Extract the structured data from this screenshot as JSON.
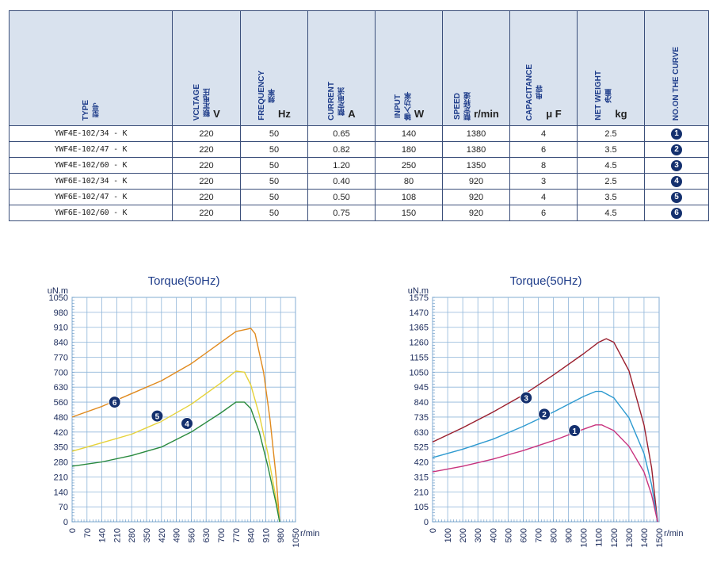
{
  "table": {
    "headers": [
      {
        "en": "TYPE",
        "cn": "型号",
        "unit": ""
      },
      {
        "en": "VCLTAGE",
        "cn": "额定电压",
        "unit": "V"
      },
      {
        "en": "FREQUENCY",
        "cn": "频率",
        "unit": "Hz"
      },
      {
        "en": "CURRENT",
        "cn": "额定电流",
        "unit": "A"
      },
      {
        "en": "INPUT",
        "cn": "输入功率",
        "unit": "W"
      },
      {
        "en": "SPEED",
        "cn": "额定转速",
        "unit": "r/min"
      },
      {
        "en": "CAPACITANCE",
        "cn": "电容",
        "unit": "μ F"
      },
      {
        "en": "NET WEIGHT",
        "cn": "净重",
        "unit": "kg"
      },
      {
        "en": "NO.ON THE CURVE",
        "cn": "",
        "unit": ""
      }
    ],
    "rows": [
      {
        "type": "YWF4E-102/34 - K",
        "voltage": "220",
        "frequency": "50",
        "current": "0.65",
        "input": "140",
        "speed": "1380",
        "capacitance": "4",
        "weight": "2.5",
        "curve": "1"
      },
      {
        "type": "YWF4E-102/47 - K",
        "voltage": "220",
        "frequency": "50",
        "current": "0.82",
        "input": "180",
        "speed": "1380",
        "capacitance": "6",
        "weight": "3.5",
        "curve": "2"
      },
      {
        "type": "YWF4E-102/60 - K",
        "voltage": "220",
        "frequency": "50",
        "current": "1.20",
        "input": "250",
        "speed": "1350",
        "capacitance": "8",
        "weight": "4.5",
        "curve": "3"
      },
      {
        "type": "YWF6E-102/34 - K",
        "voltage": "220",
        "frequency": "50",
        "current": "0.40",
        "input": "80",
        "speed": "920",
        "capacitance": "3",
        "weight": "2.5",
        "curve": "4"
      },
      {
        "type": "YWF6E-102/47 - K",
        "voltage": "220",
        "frequency": "50",
        "current": "0.50",
        "input": "108",
        "speed": "920",
        "capacitance": "4",
        "weight": "3.5",
        "curve": "5"
      },
      {
        "type": "YWF6E-102/60 - K",
        "voltage": "220",
        "frequency": "50",
        "current": "0.75",
        "input": "150",
        "speed": "920",
        "capacitance": "6",
        "weight": "4.5",
        "curve": "6"
      }
    ]
  },
  "chart_data": [
    {
      "type": "line",
      "title": "Torque(50Hz)",
      "ylabel": "uN.m",
      "xlabel": "r/min",
      "xlim": [
        0,
        1050
      ],
      "ylim": [
        0,
        1050
      ],
      "x_ticks": [
        0,
        70,
        140,
        210,
        280,
        350,
        420,
        490,
        560,
        630,
        700,
        770,
        840,
        910,
        980,
        1050
      ],
      "y_ticks": [
        0,
        70,
        140,
        210,
        280,
        350,
        420,
        480,
        560,
        630,
        700,
        770,
        840,
        910,
        980,
        1050
      ],
      "grid": true,
      "series": [
        {
          "name": "6",
          "color": "#e08a1e",
          "x": [
            0,
            140,
            280,
            420,
            560,
            700,
            770,
            840,
            860,
            900,
            930,
            960,
            975
          ],
          "y": [
            490,
            540,
            600,
            660,
            740,
            840,
            890,
            905,
            880,
            700,
            480,
            200,
            0
          ]
        },
        {
          "name": "5",
          "color": "#e6d23a",
          "x": [
            0,
            140,
            280,
            420,
            560,
            700,
            770,
            810,
            840,
            880,
            920,
            960,
            975
          ],
          "y": [
            330,
            370,
            410,
            470,
            550,
            650,
            705,
            700,
            640,
            500,
            320,
            100,
            0
          ]
        },
        {
          "name": "4",
          "color": "#2a8a3e",
          "x": [
            0,
            140,
            280,
            420,
            560,
            700,
            770,
            810,
            840,
            880,
            920,
            960,
            975
          ],
          "y": [
            260,
            280,
            310,
            350,
            420,
            510,
            560,
            560,
            530,
            420,
            260,
            80,
            0
          ]
        }
      ],
      "labels": [
        {
          "text": "6",
          "x": 200,
          "y": 560
        },
        {
          "text": "5",
          "x": 400,
          "y": 495
        },
        {
          "text": "4",
          "x": 540,
          "y": 460
        }
      ]
    },
    {
      "type": "line",
      "title": "Torque(50Hz)",
      "ylabel": "uN.m",
      "xlabel": "r/min",
      "xlim": [
        0,
        1500
      ],
      "ylim": [
        0,
        1575
      ],
      "x_ticks": [
        0,
        100,
        200,
        300,
        400,
        500,
        600,
        700,
        800,
        900,
        1000,
        1100,
        1200,
        1300,
        1400,
        1500
      ],
      "y_ticks": [
        0,
        105,
        210,
        315,
        420,
        525,
        630,
        735,
        840,
        945,
        1050,
        1155,
        1260,
        1365,
        1470,
        1575
      ],
      "grid": true,
      "series": [
        {
          "name": "3",
          "color": "#9a1f2e",
          "x": [
            0,
            200,
            400,
            600,
            800,
            1000,
            1100,
            1150,
            1200,
            1300,
            1400,
            1450,
            1490
          ],
          "y": [
            560,
            660,
            770,
            890,
            1030,
            1180,
            1260,
            1285,
            1260,
            1060,
            680,
            380,
            0
          ]
        },
        {
          "name": "2",
          "color": "#2e9ad0",
          "x": [
            0,
            200,
            400,
            600,
            800,
            1000,
            1080,
            1120,
            1200,
            1300,
            1400,
            1450,
            1490
          ],
          "y": [
            450,
            510,
            580,
            670,
            770,
            880,
            915,
            915,
            870,
            730,
            480,
            260,
            0
          ]
        },
        {
          "name": "1",
          "color": "#c8337e",
          "x": [
            0,
            200,
            400,
            600,
            800,
            1000,
            1080,
            1120,
            1200,
            1300,
            1400,
            1450,
            1490
          ],
          "y": [
            350,
            390,
            440,
            500,
            570,
            650,
            680,
            680,
            640,
            530,
            350,
            190,
            0
          ]
        }
      ],
      "labels": [
        {
          "text": "3",
          "x": 620,
          "y": 870
        },
        {
          "text": "2",
          "x": 740,
          "y": 755
        },
        {
          "text": "1",
          "x": 940,
          "y": 640
        }
      ]
    }
  ]
}
